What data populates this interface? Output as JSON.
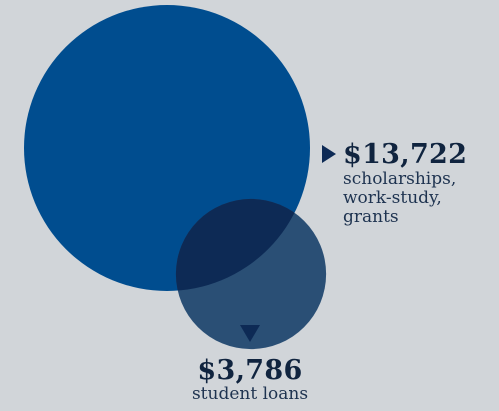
{
  "chart_data": {
    "type": "bubble",
    "series": [
      {
        "value": 13722,
        "value_label": "$13,722",
        "description": [
          "scholarships,",
          "work-study,",
          "grants"
        ],
        "color": "#004d8f"
      },
      {
        "value": 3786,
        "value_label": "$3,786",
        "description": [
          "student loans"
        ],
        "color": "#2a4f75"
      }
    ],
    "colors": {
      "background": "#d1d5d9",
      "overlap": "#0d2a55",
      "marker": "#0d2a55"
    }
  }
}
